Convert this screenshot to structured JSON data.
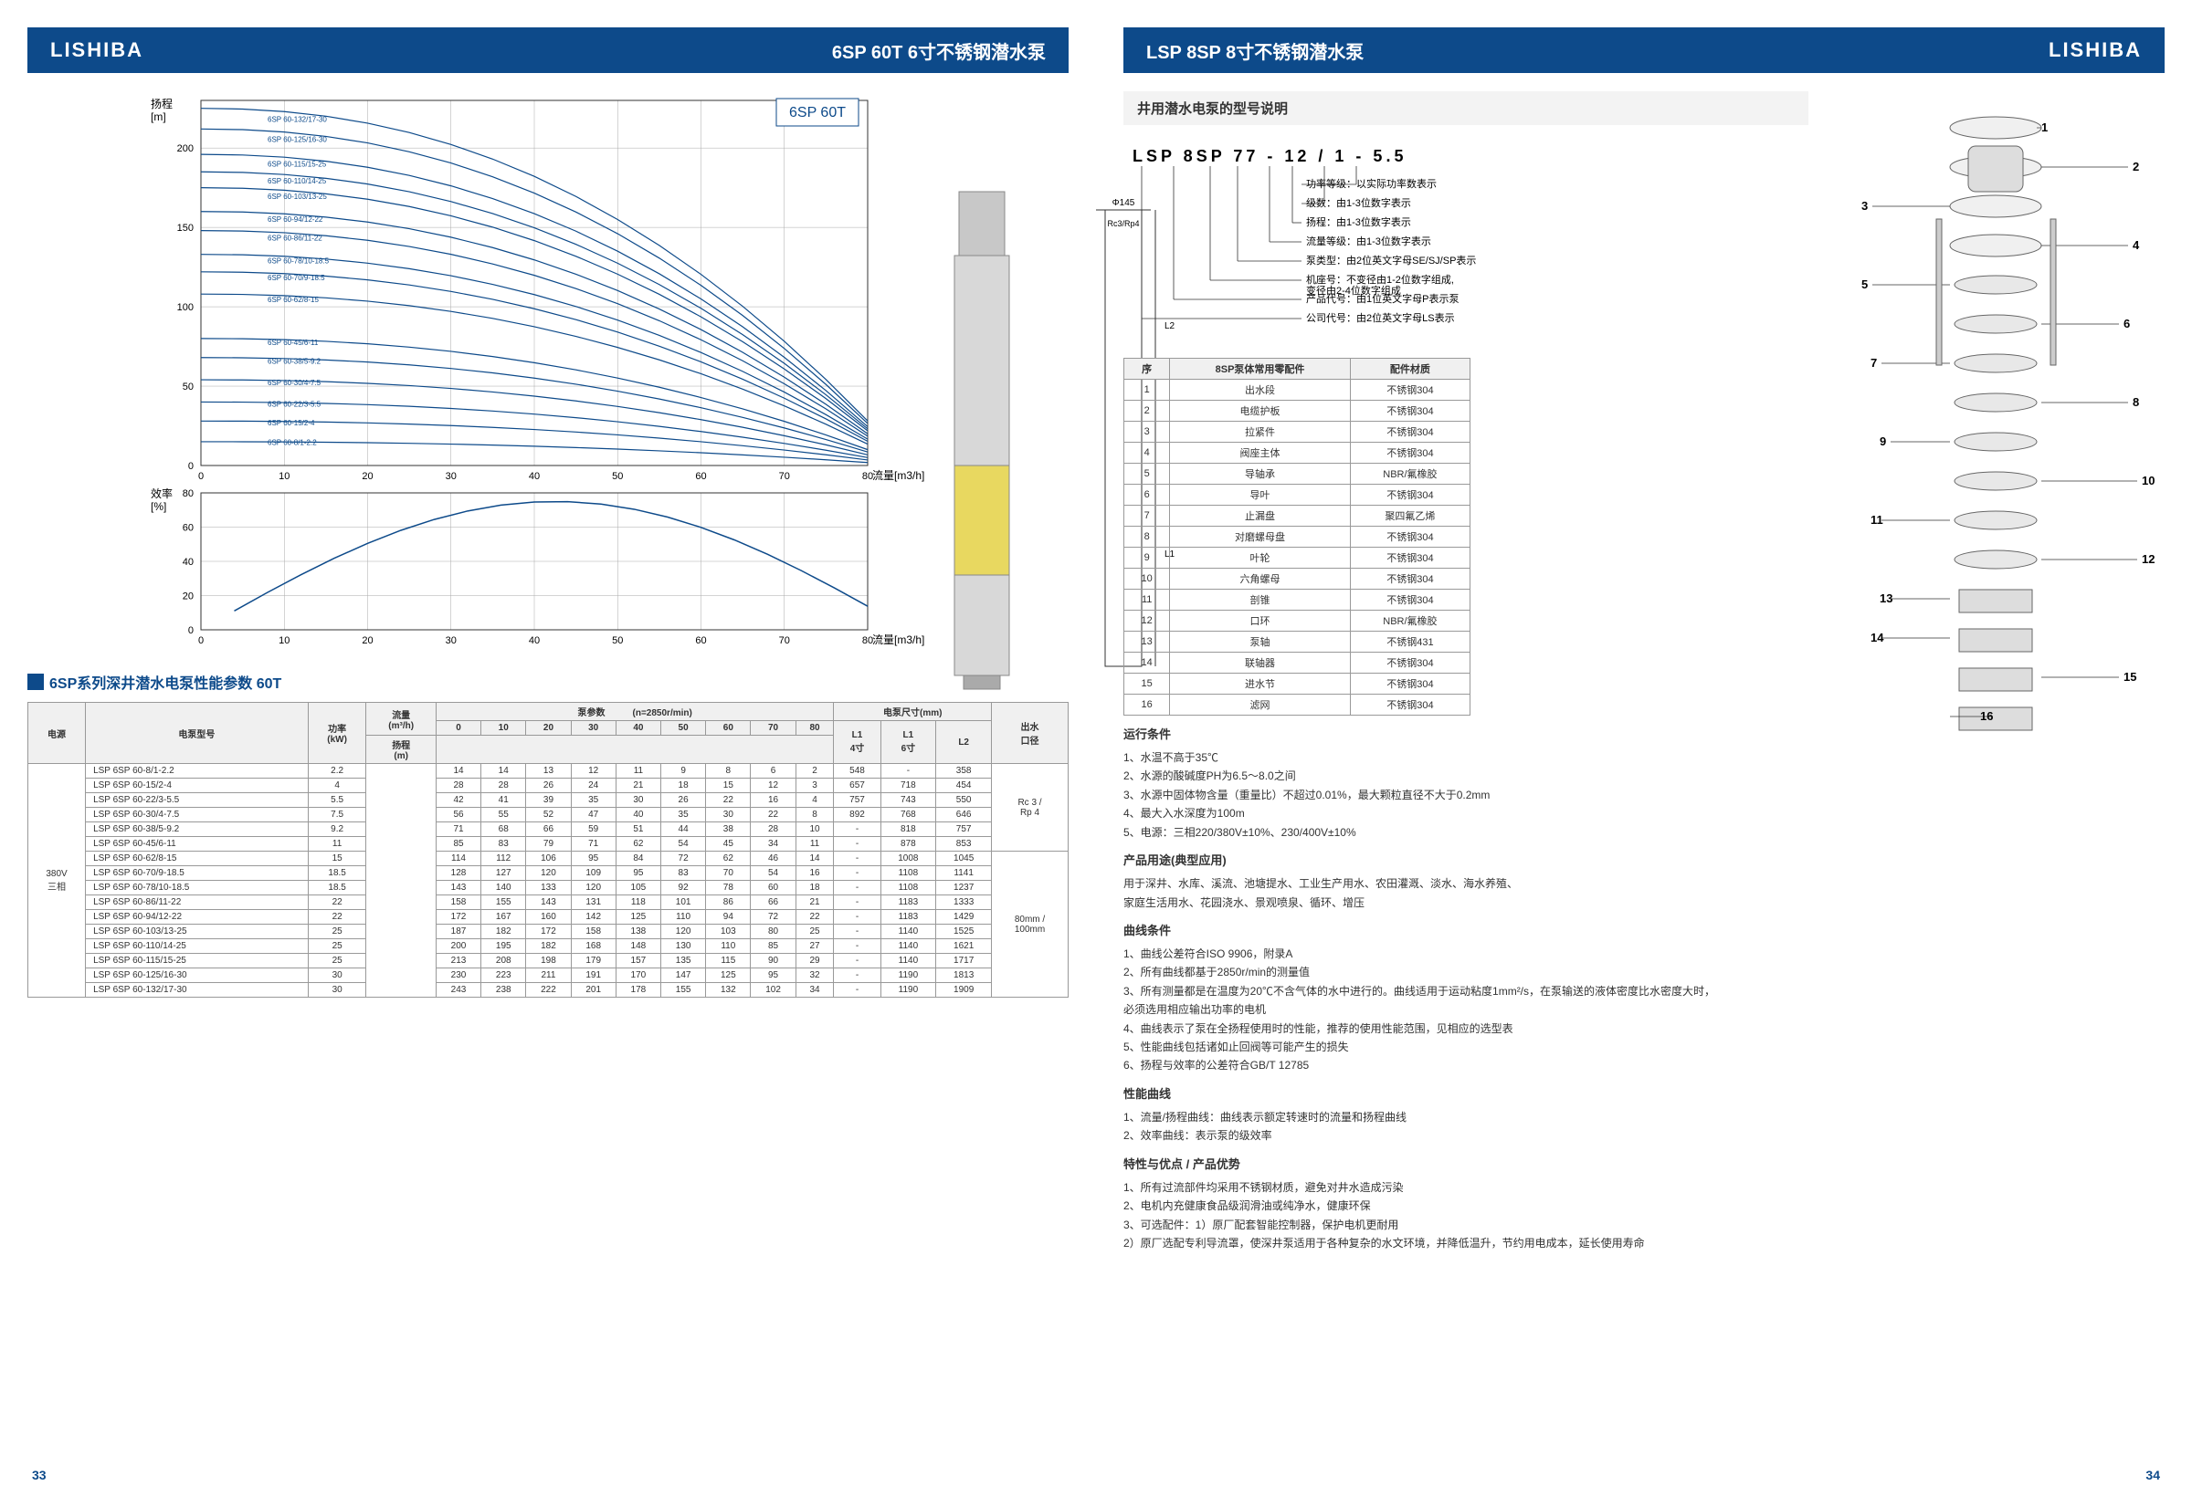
{
  "brand": "LISHIBA",
  "leftTitle": "6SP 60T 6寸不锈钢潜水泵",
  "rightTitle": "LSP 8SP 8寸不锈钢潜水泵",
  "pageLeft": "33",
  "pageRight": "34",
  "chartLabel": "6SP 60T",
  "headChart": {
    "ylabel": "扬程\n[m]",
    "xlabel": "流量[m3/h]",
    "xlim": [
      0,
      80
    ],
    "ylim": [
      0,
      230
    ],
    "xtick": 10,
    "ytick": 50,
    "curves": [
      {
        "label": "6SP 60-132/17-30",
        "y0": 225
      },
      {
        "label": "6SP 60-125/16-30",
        "y0": 212
      },
      {
        "label": "6SP 60-115/15-25",
        "y0": 196
      },
      {
        "label": "6SP 60-110/14-25",
        "y0": 185
      },
      {
        "label": "6SP 60-103/13-25",
        "y0": 175
      },
      {
        "label": "6SP 60-94/12-22",
        "y0": 160
      },
      {
        "label": "6SP 60-86/11-22",
        "y0": 148
      },
      {
        "label": "6SP 60-78/10-18.5",
        "y0": 133
      },
      {
        "label": "6SP 60-70/9-18.5",
        "y0": 122
      },
      {
        "label": "6SP 60-62/8-15",
        "y0": 108
      },
      {
        "label": "6SP 60-45/6-11",
        "y0": 80
      },
      {
        "label": "6SP 60-38/5-9.2",
        "y0": 68
      },
      {
        "label": "6SP 60-30/4-7.5",
        "y0": 54
      },
      {
        "label": "6SP 60-22/3-5.5",
        "y0": 40
      },
      {
        "label": "6SP 60-15/2-4",
        "y0": 28
      },
      {
        "label": "6SP 60-8/1-2.2",
        "y0": 15
      }
    ],
    "color": "#0d4a8a",
    "grid": "#888"
  },
  "effChart": {
    "ylabel": "效率\n[%]",
    "xlabel": "流量[m3/h]",
    "xlim": [
      0,
      80
    ],
    "ylim": [
      0,
      80
    ],
    "xtick": 10,
    "ytick": 20
  },
  "specsTitle": "6SP系列深井潜水电泵性能参数  60T",
  "specsHeaders": {
    "power_src": "电源",
    "model": "电泵型号",
    "kw": "功率\n(kW)",
    "flow": "流量\n(m³/h)",
    "pump_params": "泵参数",
    "rpm": "(n=2850r/min)",
    "dims": "电泵尺寸(mm)",
    "cols": [
      "0",
      "10",
      "20",
      "30",
      "40",
      "50",
      "60",
      "70",
      "80"
    ],
    "L1_4": "L1\n4寸",
    "L1_6": "L1\n6寸",
    "L2": "L2",
    "outlet": "出水\n口径",
    "head": "扬程\n(m)"
  },
  "powerSrc": "380V\n三相",
  "outlet": "Rc 3 /\nRp 4",
  "pipe": "80mm /\n100mm",
  "specs": [
    {
      "m": "LSP 6SP 60-8/1-2.2",
      "kw": "2.2",
      "h": [
        "14",
        "14",
        "13",
        "12",
        "11",
        "9",
        "8",
        "6",
        "2"
      ],
      "l": [
        "548",
        "-",
        "358"
      ]
    },
    {
      "m": "LSP 6SP 60-15/2-4",
      "kw": "4",
      "h": [
        "28",
        "28",
        "26",
        "24",
        "21",
        "18",
        "15",
        "12",
        "3"
      ],
      "l": [
        "657",
        "718",
        "454"
      ]
    },
    {
      "m": "LSP 6SP 60-22/3-5.5",
      "kw": "5.5",
      "h": [
        "42",
        "41",
        "39",
        "35",
        "30",
        "26",
        "22",
        "16",
        "4"
      ],
      "l": [
        "757",
        "743",
        "550"
      ]
    },
    {
      "m": "LSP 6SP 60-30/4-7.5",
      "kw": "7.5",
      "h": [
        "56",
        "55",
        "52",
        "47",
        "40",
        "35",
        "30",
        "22",
        "8"
      ],
      "l": [
        "892",
        "768",
        "646"
      ]
    },
    {
      "m": "LSP 6SP 60-38/5-9.2",
      "kw": "9.2",
      "h": [
        "71",
        "68",
        "66",
        "59",
        "51",
        "44",
        "38",
        "28",
        "10"
      ],
      "l": [
        "-",
        "818",
        "757"
      ]
    },
    {
      "m": "LSP 6SP 60-45/6-11",
      "kw": "11",
      "h": [
        "85",
        "83",
        "79",
        "71",
        "62",
        "54",
        "45",
        "34",
        "11"
      ],
      "l": [
        "-",
        "878",
        "853"
      ]
    },
    {
      "m": "LSP 6SP 60-62/8-15",
      "kw": "15",
      "h": [
        "114",
        "112",
        "106",
        "95",
        "84",
        "72",
        "62",
        "46",
        "14"
      ],
      "l": [
        "-",
        "1008",
        "1045"
      ]
    },
    {
      "m": "LSP 6SP 60-70/9-18.5",
      "kw": "18.5",
      "h": [
        "128",
        "127",
        "120",
        "109",
        "95",
        "83",
        "70",
        "54",
        "16"
      ],
      "l": [
        "-",
        "1108",
        "1141"
      ]
    },
    {
      "m": "LSP 6SP 60-78/10-18.5",
      "kw": "18.5",
      "h": [
        "143",
        "140",
        "133",
        "120",
        "105",
        "92",
        "78",
        "60",
        "18"
      ],
      "l": [
        "-",
        "1108",
        "1237"
      ]
    },
    {
      "m": "LSP 6SP 60-86/11-22",
      "kw": "22",
      "h": [
        "158",
        "155",
        "143",
        "131",
        "118",
        "101",
        "86",
        "66",
        "21"
      ],
      "l": [
        "-",
        "1183",
        "1333"
      ]
    },
    {
      "m": "LSP 6SP 60-94/12-22",
      "kw": "22",
      "h": [
        "172",
        "167",
        "160",
        "142",
        "125",
        "110",
        "94",
        "72",
        "22"
      ],
      "l": [
        "-",
        "1183",
        "1429"
      ]
    },
    {
      "m": "LSP 6SP 60-103/13-25",
      "kw": "25",
      "h": [
        "187",
        "182",
        "172",
        "158",
        "138",
        "120",
        "103",
        "80",
        "25"
      ],
      "l": [
        "-",
        "1140",
        "1525"
      ]
    },
    {
      "m": "LSP 6SP 60-110/14-25",
      "kw": "25",
      "h": [
        "200",
        "195",
        "182",
        "168",
        "148",
        "130",
        "110",
        "85",
        "27"
      ],
      "l": [
        "-",
        "1140",
        "1621"
      ]
    },
    {
      "m": "LSP 6SP 60-115/15-25",
      "kw": "25",
      "h": [
        "213",
        "208",
        "198",
        "179",
        "157",
        "135",
        "115",
        "90",
        "29"
      ],
      "l": [
        "-",
        "1140",
        "1717"
      ]
    },
    {
      "m": "LSP 6SP 60-125/16-30",
      "kw": "30",
      "h": [
        "230",
        "223",
        "211",
        "191",
        "170",
        "147",
        "125",
        "95",
        "32"
      ],
      "l": [
        "-",
        "1190",
        "1813"
      ]
    },
    {
      "m": "LSP 6SP 60-132/17-30",
      "kw": "30",
      "h": [
        "243",
        "238",
        "222",
        "201",
        "178",
        "155",
        "132",
        "102",
        "34"
      ],
      "l": [
        "-",
        "1190",
        "1909"
      ]
    }
  ],
  "dims": {
    "dia": "Φ145",
    "thread": "Rc3/Rp4",
    "L1": "L1",
    "L2": "L2"
  },
  "modelDesc": "井用潜水电泵的型号说明",
  "modelCode": "LSP 8SP 77 - 12 / 1 - 5.5",
  "modelLines": [
    "功率等级：以实际功率数表示",
    "级数：由1-3位数字表示",
    "扬程：由1-3位数字表示",
    "流量等级：由1-3位数字表示",
    "泵类型：由2位英文字母SE/SJ/SP表示",
    "机座号：不变径由1-2位数字组成,\n          变径由2-4位数字组成",
    "产品代号：由1位英文字母P表示泵",
    "公司代号：由2位英文字母LS表示"
  ],
  "partsHeaders": {
    "seq": "序",
    "name": "8SP泵体常用零配件",
    "mat": "配件材质"
  },
  "parts": [
    {
      "n": "1",
      "p": "出水段",
      "m": "不锈钢304"
    },
    {
      "n": "2",
      "p": "电缆护板",
      "m": "不锈钢304"
    },
    {
      "n": "3",
      "p": "拉紧件",
      "m": "不锈钢304"
    },
    {
      "n": "4",
      "p": "阀座主体",
      "m": "不锈钢304"
    },
    {
      "n": "5",
      "p": "导轴承",
      "m": "NBR/氟橡胶"
    },
    {
      "n": "6",
      "p": "导叶",
      "m": "不锈钢304"
    },
    {
      "n": "7",
      "p": "止漏盘",
      "m": "聚四氟乙烯"
    },
    {
      "n": "8",
      "p": "对磨螺母盘",
      "m": "不锈钢304"
    },
    {
      "n": "9",
      "p": "叶轮",
      "m": "不锈钢304"
    },
    {
      "n": "10",
      "p": "六角螺母",
      "m": "不锈钢304"
    },
    {
      "n": "11",
      "p": "剖锥",
      "m": "不锈钢304"
    },
    {
      "n": "12",
      "p": "口环",
      "m": "NBR/氟橡胶"
    },
    {
      "n": "13",
      "p": "泵轴",
      "m": "不锈钢431"
    },
    {
      "n": "14",
      "p": "联轴器",
      "m": "不锈钢304"
    },
    {
      "n": "15",
      "p": "进水节",
      "m": "不锈钢304"
    },
    {
      "n": "16",
      "p": "滤网",
      "m": "不锈钢304"
    }
  ],
  "sections": [
    {
      "h": "运行条件",
      "lines": [
        "1、水温不高于35℃",
        "2、水源的酸碱度PH为6.5～8.0之间",
        "3、水源中固体物含量（重量比）不超过0.01%，最大颗粒直径不大于0.2mm",
        "4、最大入水深度为100m",
        "5、电源：三相220/380V±10%、230/400V±10%"
      ]
    },
    {
      "h": "产品用途(典型应用)",
      "lines": [
        "用于深井、水库、溪流、池塘提水、工业生产用水、农田灌溉、淡水、海水养殖、",
        "家庭生活用水、花园浇水、景观喷泉、循环、增压"
      ]
    },
    {
      "h": "曲线条件",
      "lines": [
        "1、曲线公差符合ISO 9906，附录A",
        "2、所有曲线都基于2850r/min的测量值",
        "3、所有测量都是在温度为20℃不含气体的水中进行的。曲线适用于运动粘度1mm²/s，在泵输送的液体密度比水密度大时，\n     必须选用相应输出功率的电机",
        "4、曲线表示了泵在全扬程使用时的性能，推荐的使用性能范围，见相应的选型表",
        "5、性能曲线包括诸如止回阀等可能产生的损失",
        "6、扬程与效率的公差符合GB/T 12785"
      ]
    },
    {
      "h": "性能曲线",
      "lines": [
        "1、流量/扬程曲线：曲线表示额定转速时的流量和扬程曲线",
        "2、效率曲线：表示泵的级效率"
      ]
    },
    {
      "h": "特性与优点 / 产品优势",
      "lines": [
        "1、所有过流部件均采用不锈钢材质，避免对井水造成污染",
        "2、电机内充健康食品级润滑油或纯净水，健康环保",
        "3、可选配件：1）原厂配套智能控制器，保护电机更耐用\n                      2）原厂选配专利导流罩，使深井泵适用于各种复杂的水文环境，并降低温升，节约用电成本，延长使用寿命"
      ]
    }
  ]
}
